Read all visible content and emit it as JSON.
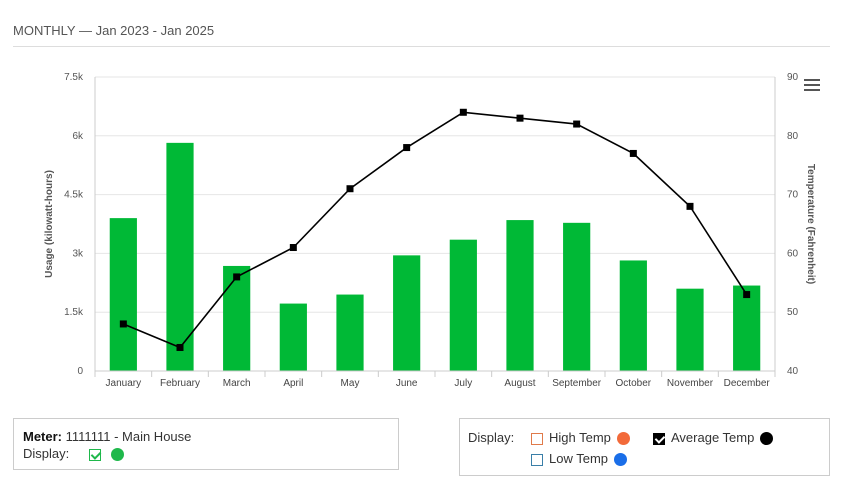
{
  "header": {
    "title": "MONTHLY — Jan 2023 - Jan 2025"
  },
  "colors": {
    "bar": "#00b936",
    "line": "#000000",
    "grid": "#e6e6e6",
    "high_temp": "#f26a3a",
    "low_temp": "#1a6ee8",
    "avg_temp": "#000000",
    "usage_dot": "#1fb84b"
  },
  "chart_data": {
    "type": "bar",
    "categories": [
      "January",
      "February",
      "March",
      "April",
      "May",
      "June",
      "July",
      "August",
      "September",
      "October",
      "November",
      "December"
    ],
    "series": [
      {
        "name": "Usage",
        "type": "bar",
        "axis": "left",
        "values": [
          3900,
          5820,
          2680,
          1720,
          1950,
          2950,
          3350,
          3850,
          3780,
          2820,
          2100,
          2180
        ]
      },
      {
        "name": "Average Temp",
        "type": "line",
        "axis": "right",
        "values": [
          48,
          44,
          56,
          61,
          71,
          78,
          84,
          83,
          82,
          77,
          68,
          53
        ]
      }
    ],
    "ylabel": "Usage (kilowatt-hours)",
    "y2label": "Temperature (Fahrenheit)",
    "ylim": [
      0,
      7500
    ],
    "y2lim": [
      40,
      90
    ],
    "yticks": [
      "0",
      "1.5k",
      "3k",
      "4.5k",
      "6k",
      "7.5k"
    ],
    "y2ticks": [
      "40",
      "50",
      "60",
      "70",
      "80",
      "90"
    ],
    "grid": true
  },
  "meter": {
    "label": "Meter:",
    "value": "1111111 - Main House",
    "display_label": "Display:"
  },
  "legend": {
    "title": "Display:",
    "high_temp": "High Temp",
    "low_temp": "Low Temp",
    "avg_temp": "Average Temp"
  }
}
